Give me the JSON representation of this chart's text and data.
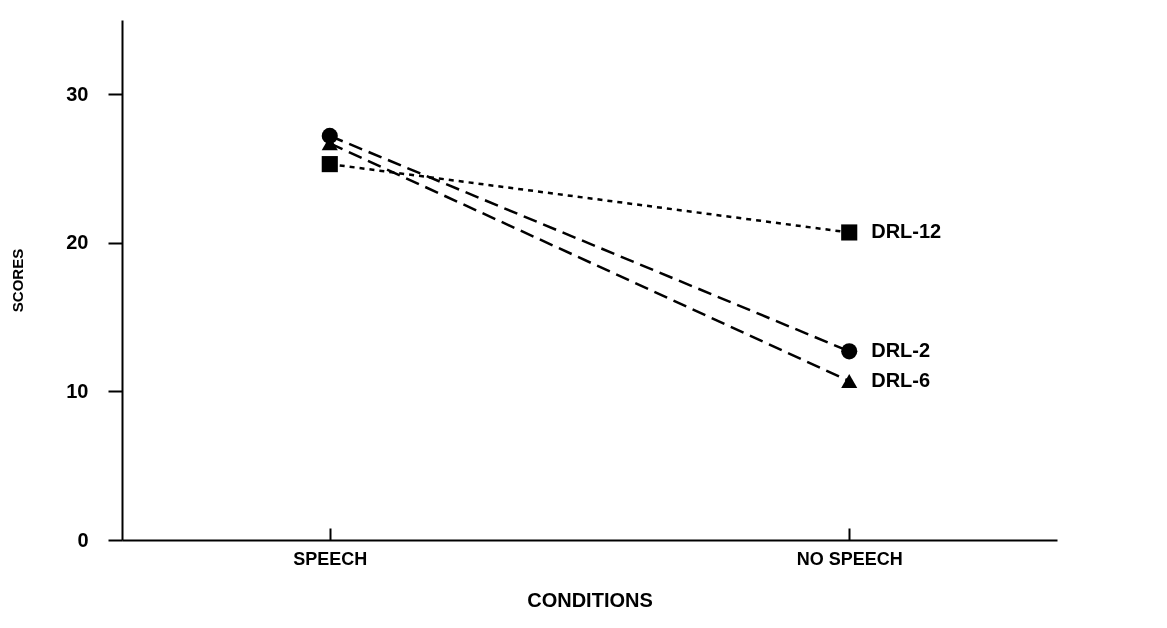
{
  "chart_data": {
    "type": "line",
    "xlabel": "CONDITIONS",
    "ylabel": "SCORES",
    "categories": [
      "SPEECH",
      "NO SPEECH"
    ],
    "ylim": [
      0,
      35
    ],
    "yticks": [
      0,
      10,
      20,
      30
    ],
    "grid": false,
    "legend": false,
    "series": [
      {
        "name": "DRL-2",
        "color": "#000000",
        "values": [
          27.2,
          12.7
        ],
        "marker": "circle",
        "line_style": "dashed"
      },
      {
        "name": "DRL-6",
        "color": "#000000",
        "values": [
          26.7,
          10.7
        ],
        "marker": "triangle",
        "line_style": "dashed"
      },
      {
        "name": "DRL-12",
        "color": "#000000",
        "values": [
          25.3,
          20.7
        ],
        "marker": "square",
        "line_style": "dotted"
      }
    ]
  }
}
